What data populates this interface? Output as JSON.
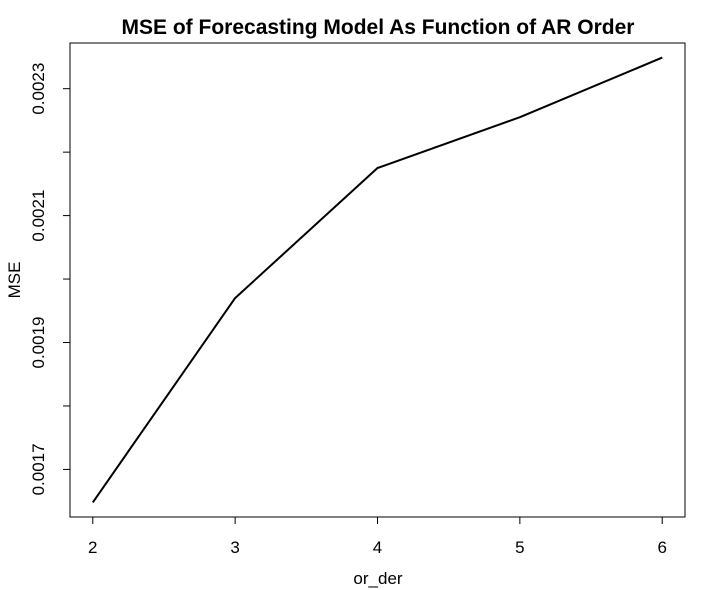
{
  "chart_data": {
    "type": "line",
    "title": "MSE of Forecasting Model As Function of AR Order",
    "xlabel": "or_der",
    "ylabel": "MSE",
    "x": [
      2,
      3,
      4,
      5,
      6
    ],
    "y": [
      0.001648,
      0.00197,
      0.002175,
      0.002255,
      0.002349
    ],
    "xlim": [
      1.84,
      6.16
    ],
    "ylim": [
      0.001625,
      0.002372
    ],
    "x_ticks": [
      "2",
      "3",
      "4",
      "5",
      "6"
    ],
    "y_ticks": [
      0.0016,
      0.0017,
      0.0018,
      0.0019,
      0.002,
      0.0021,
      0.0022,
      0.0023
    ],
    "y_tick_labels": [
      "",
      "0.0017",
      "",
      "0.0019",
      "",
      "0.0021",
      "",
      "0.0023"
    ],
    "grid": false,
    "legend": "none",
    "line_color": "#000000"
  }
}
